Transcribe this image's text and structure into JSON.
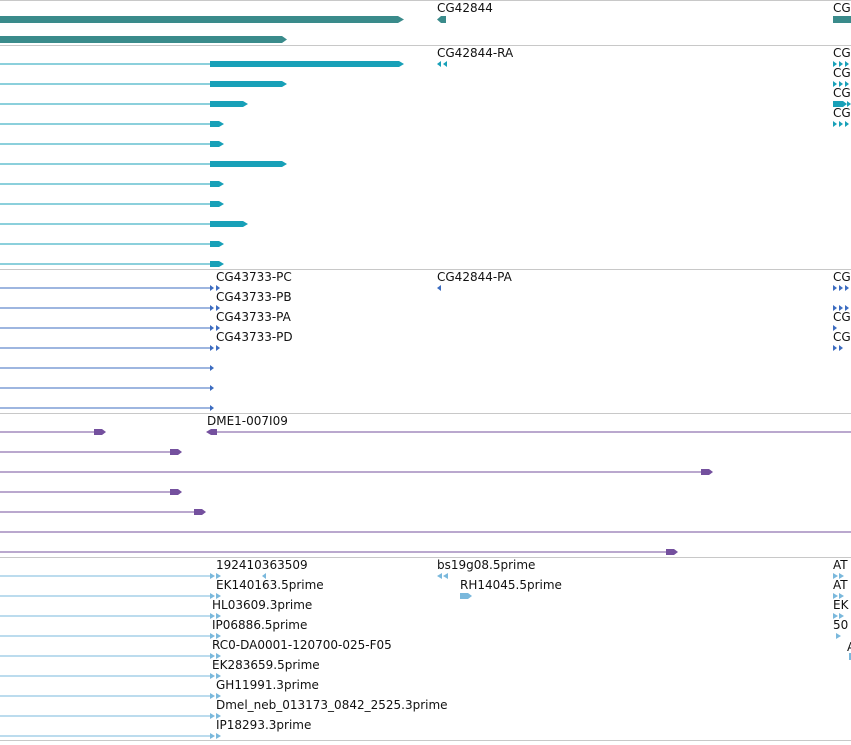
{
  "colors": {
    "gene": "#3a8b8b",
    "mrna": "#18a0b8",
    "cds": "#3c6cc0",
    "clone": "#74509e",
    "est": "#7ab8dc",
    "separator": "#c8c8c8"
  },
  "tracks": [
    {
      "id": "gene",
      "color_key": "gene",
      "labels": [
        {
          "text": "CG42844"
        },
        {
          "text": "CG"
        }
      ],
      "features": [
        {
          "kind": "thick",
          "from": "left",
          "label": ""
        },
        {
          "kind": "thick",
          "from": "left",
          "label": ""
        },
        {
          "kind": "small-rev",
          "label": "CG42844"
        },
        {
          "kind": "right-block",
          "label": "CG"
        }
      ]
    },
    {
      "id": "mrna",
      "color_key": "mrna",
      "labels": [
        {
          "text": "CG42844-RA"
        },
        {
          "text": "CG"
        },
        {
          "text": "CG"
        },
        {
          "text": "CG"
        },
        {
          "text": "CG"
        }
      ],
      "row_count": 11
    },
    {
      "id": "cds",
      "color_key": "cds",
      "labels": [
        {
          "text": "CG43733-PC"
        },
        {
          "text": "CG43733-PB"
        },
        {
          "text": "CG43733-PA"
        },
        {
          "text": "CG43733-PD"
        },
        {
          "text": "CG42844-PA"
        },
        {
          "text": "CG"
        },
        {
          "text": "CG"
        },
        {
          "text": "CG"
        }
      ],
      "row_count": 7
    },
    {
      "id": "clone",
      "color_key": "clone",
      "labels": [
        {
          "text": "DME1-007I09"
        }
      ],
      "row_count": 7
    },
    {
      "id": "est",
      "color_key": "est",
      "labels": [
        {
          "text": "192410363509"
        },
        {
          "text": "EK140163.5prime"
        },
        {
          "text": "HL03609.3prime"
        },
        {
          "text": "IP06886.5prime"
        },
        {
          "text": "RC0-DA0001-120700-025-F05"
        },
        {
          "text": "EK283659.5prime"
        },
        {
          "text": "GH11991.3prime"
        },
        {
          "text": "Dmel_neb_013173_0842_2525.3prime"
        },
        {
          "text": "IP18293.3prime"
        },
        {
          "text": "bs19g08.5prime"
        },
        {
          "text": "RH14045.5prime"
        },
        {
          "text": "AT"
        },
        {
          "text": "AT"
        },
        {
          "text": "EK"
        },
        {
          "text": "50"
        },
        {
          "text": "A"
        }
      ],
      "row_count": 9
    }
  ]
}
